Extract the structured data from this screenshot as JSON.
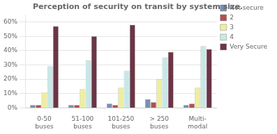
{
  "chart_data": {
    "type": "bar",
    "title": "Perception of security on transit by system size.",
    "categories": [
      "0-50\nbuses",
      "51-100\nbuses",
      "101-250\nbuses",
      "> 250\nbuses",
      "Multi-\nmodal"
    ],
    "series": [
      {
        "name": "Not secure",
        "color": "#7a8fb5",
        "values": [
          2,
          2,
          3,
          6,
          2
        ]
      },
      {
        "name": "2",
        "color": "#b05050",
        "values": [
          2,
          2,
          2,
          4,
          3
        ]
      },
      {
        "name": "3",
        "color": "#eeeea0",
        "values": [
          11,
          13,
          14,
          20,
          14
        ]
      },
      {
        "name": "4",
        "color": "#c8e8e8",
        "values": [
          29,
          33,
          26,
          35,
          43
        ]
      },
      {
        "name": "Very Secure",
        "color": "#6b3545",
        "values": [
          57,
          50,
          58,
          39,
          41
        ]
      }
    ],
    "ylim": [
      0,
      65
    ],
    "yticks": [
      {
        "value": 0,
        "label": "0%"
      },
      {
        "value": 10,
        "label": "10%"
      },
      {
        "value": 20,
        "label": "20%"
      },
      {
        "value": 30,
        "label": "30%"
      },
      {
        "value": 40,
        "label": "40%"
      },
      {
        "value": 50,
        "label": "50%"
      },
      {
        "value": 60,
        "label": "60%"
      }
    ],
    "grid": true,
    "legend": "upper right"
  }
}
